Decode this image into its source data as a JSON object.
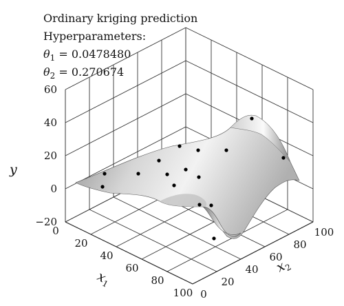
{
  "annotations": {
    "line1": "Ordinary kriging prediction",
    "line2": "Hyperparameters:",
    "theta1_label": "θ",
    "theta1_sub": "1",
    "theta1_value": " = 0.0478480",
    "theta2_label": "θ",
    "theta2_sub": "2",
    "theta2_value": " = 0.270674"
  },
  "chart_data": {
    "type": "surface",
    "title": "Ordinary kriging prediction",
    "xlabel": "x",
    "xlabel_sub": "1",
    "x2label": "x",
    "x2label_sub": "2",
    "ylabel": "y",
    "x1_ticks": [
      "0",
      "20",
      "40",
      "60",
      "80",
      "100"
    ],
    "x2_ticks": [
      "0",
      "20",
      "40",
      "60",
      "80",
      "100"
    ],
    "y_ticks": [
      "−20",
      "0",
      "20",
      "40",
      "60"
    ],
    "x1_range": [
      0,
      100
    ],
    "x2_range": [
      0,
      100
    ],
    "y_range": [
      -20,
      60
    ],
    "grid": true,
    "sample_points": [
      {
        "x1": 5,
        "x2": 15,
        "y": 12
      },
      {
        "x1": 10,
        "x2": 20,
        "y": 5
      },
      {
        "x1": 20,
        "x2": 40,
        "y": 17
      },
      {
        "x1": 20,
        "x2": 62,
        "y": 31
      },
      {
        "x1": 15,
        "x2": 75,
        "y": 25
      },
      {
        "x1": 30,
        "x2": 55,
        "y": 20
      },
      {
        "x1": 35,
        "x2": 55,
        "y": 12
      },
      {
        "x1": 35,
        "x2": 75,
        "y": 25
      },
      {
        "x1": 25,
        "x2": 90,
        "y": 22
      },
      {
        "x1": 50,
        "x2": 75,
        "y": 18
      },
      {
        "x1": 55,
        "x2": 85,
        "y": 8
      },
      {
        "x1": 60,
        "x2": 95,
        "y": 28
      },
      {
        "x1": 85,
        "x2": 90,
        "y": 20
      },
      {
        "x1": 45,
        "x2": 100,
        "y": 50
      },
      {
        "x1": 90,
        "x2": 40,
        "y": -25
      }
    ]
  }
}
